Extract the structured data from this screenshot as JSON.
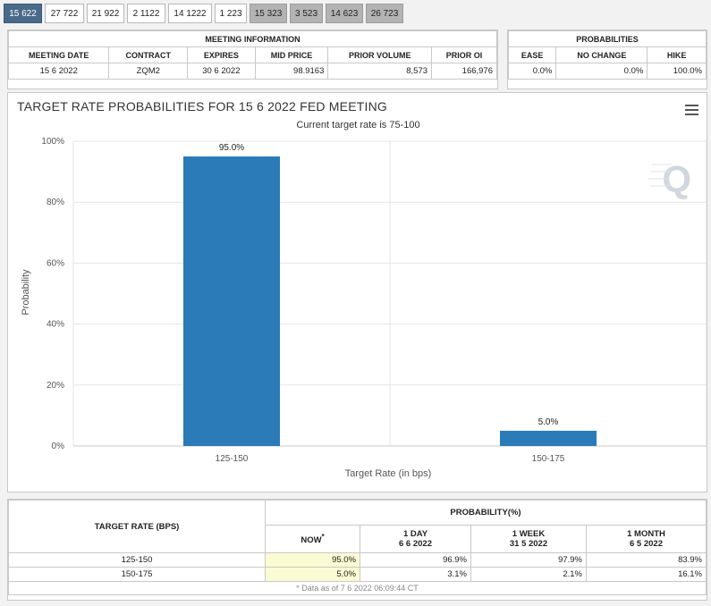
{
  "tabs": [
    {
      "label": "15 622",
      "state": "active"
    },
    {
      "label": "27 722",
      "state": "normal"
    },
    {
      "label": "21 922",
      "state": "normal"
    },
    {
      "label": "2 1122",
      "state": "normal"
    },
    {
      "label": "14 1222",
      "state": "normal"
    },
    {
      "label": "1 223",
      "state": "normal"
    },
    {
      "label": "15 323",
      "state": "dark"
    },
    {
      "label": "3 523",
      "state": "dark"
    },
    {
      "label": "14 623",
      "state": "dark"
    },
    {
      "label": "26 723",
      "state": "dark"
    }
  ],
  "meeting": {
    "title": "MEETING INFORMATION",
    "headers": [
      "MEETING DATE",
      "CONTRACT",
      "EXPIRES",
      "MID PRICE",
      "PRIOR VOLUME",
      "PRIOR OI"
    ],
    "row": [
      "15 6 2022",
      "ZQM2",
      "30 6 2022",
      "98.9163",
      "8,573",
      "166,976"
    ]
  },
  "probabilities": {
    "title": "PROBABILITIES",
    "headers": [
      "EASE",
      "NO CHANGE",
      "HIKE"
    ],
    "row": [
      "0.0%",
      "0.0%",
      "100.0%"
    ]
  },
  "chart_data": {
    "type": "bar",
    "title": "TARGET RATE PROBABILITIES FOR 15 6 2022 FED MEETING",
    "subtitle": "Current target rate is 75-100",
    "categories": [
      "125-150",
      "150-175"
    ],
    "values": [
      95.0,
      5.0
    ],
    "data_labels": [
      "95.0%",
      "5.0%"
    ],
    "xlabel": "Target Rate (in bps)",
    "ylabel": "Probability",
    "ylim": [
      0,
      100
    ],
    "yticks": [
      "0%",
      "20%",
      "40%",
      "60%",
      "80%",
      "100%"
    ],
    "grid": true,
    "bar_color": "#2b7bb9"
  },
  "bottom": {
    "col1_header": "TARGET RATE (BPS)",
    "prob_header": "PROBABILITY(%)",
    "now_label": "NOW",
    "now_marker": "*",
    "periods": [
      {
        "label": "1 DAY",
        "date": "6 6 2022"
      },
      {
        "label": "1 WEEK",
        "date": "31 5 2022"
      },
      {
        "label": "1 MONTH",
        "date": "6 5 2022"
      }
    ],
    "rows": [
      {
        "rate": "125-150",
        "now": "95.0%",
        "d1": "96.9%",
        "w1": "97.9%",
        "m1": "83.9%"
      },
      {
        "rate": "150-175",
        "now": "5.0%",
        "d1": "3.1%",
        "w1": "2.1%",
        "m1": "16.1%"
      }
    ],
    "footnote": "* Data as of 7 6 2022 06:09:44 CT"
  }
}
